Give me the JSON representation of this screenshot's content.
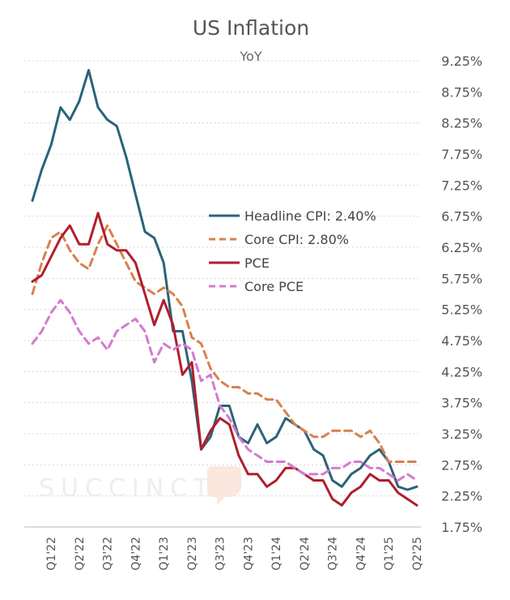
{
  "chart_data": {
    "type": "line",
    "title": "US Inflation",
    "subtitle": "YoY",
    "x": [
      "Jan-22",
      "Feb-22",
      "Mar-22",
      "Apr-22",
      "May-22",
      "Jun-22",
      "Jul-22",
      "Aug-22",
      "Sep-22",
      "Oct-22",
      "Nov-22",
      "Dec-22",
      "Jan-23",
      "Feb-23",
      "Mar-23",
      "Apr-23",
      "May-23",
      "Jun-23",
      "Jul-23",
      "Aug-23",
      "Sep-23",
      "Oct-23",
      "Nov-23",
      "Dec-23",
      "Jan-24",
      "Feb-24",
      "Mar-24",
      "Apr-24",
      "May-24",
      "Jun-24",
      "Jul-24",
      "Aug-24",
      "Sep-24",
      "Oct-24",
      "Nov-24",
      "Dec-24",
      "Jan-25",
      "Feb-25",
      "Mar-25",
      "Apr-25",
      "May-25",
      "Jun-25"
    ],
    "x_tick_labels": [
      {
        "index": 2,
        "label": "Q1'22"
      },
      {
        "index": 5,
        "label": "Q2'22"
      },
      {
        "index": 8,
        "label": "Q3'22"
      },
      {
        "index": 11,
        "label": "Q4'22"
      },
      {
        "index": 14,
        "label": "Q1'23"
      },
      {
        "index": 17,
        "label": "Q2'23"
      },
      {
        "index": 20,
        "label": "Q3'23"
      },
      {
        "index": 23,
        "label": "Q4'23"
      },
      {
        "index": 26,
        "label": "Q1'24"
      },
      {
        "index": 29,
        "label": "Q2'24"
      },
      {
        "index": 32,
        "label": "Q3'24"
      },
      {
        "index": 35,
        "label": "Q4'24"
      },
      {
        "index": 38,
        "label": "Q1'25"
      },
      {
        "index": 41,
        "label": "Q2'25"
      }
    ],
    "y_ticks": [
      1.75,
      2.25,
      2.75,
      3.25,
      3.75,
      4.25,
      4.75,
      5.25,
      5.75,
      6.25,
      6.75,
      7.25,
      7.75,
      8.25,
      8.75,
      9.25
    ],
    "y_tick_labels": [
      "1.75%",
      "2.25%",
      "2.75%",
      "3.25%",
      "3.75%",
      "4.25%",
      "4.75%",
      "5.25%",
      "5.75%",
      "6.25%",
      "6.75%",
      "7.25%",
      "7.75%",
      "8.25%",
      "8.75%",
      "9.25%"
    ],
    "ylim": [
      1.75,
      9.5
    ],
    "y_axis_position": "right",
    "grid": "horizontal dotted",
    "legend_position": "center-right",
    "series": [
      {
        "name": "Headline CPI: 2.40%",
        "color": "#2a6478",
        "style": "solid",
        "values": [
          7.0,
          7.5,
          7.9,
          8.5,
          8.3,
          8.6,
          9.1,
          8.5,
          8.3,
          8.2,
          7.7,
          7.1,
          6.5,
          6.4,
          6.0,
          4.9,
          4.9,
          4.1,
          3.0,
          3.2,
          3.7,
          3.7,
          3.2,
          3.1,
          3.4,
          3.1,
          3.2,
          3.5,
          3.4,
          3.3,
          3.0,
          2.9,
          2.5,
          2.4,
          2.6,
          2.7,
          2.9,
          3.0,
          2.8,
          2.4,
          2.35,
          2.4
        ]
      },
      {
        "name": "Core CPI: 2.80%",
        "color": "#d9804e",
        "style": "dashed",
        "values": [
          5.5,
          6.0,
          6.4,
          6.5,
          6.2,
          6.0,
          5.9,
          6.3,
          6.6,
          6.3,
          6.0,
          5.7,
          5.6,
          5.5,
          5.6,
          5.5,
          5.3,
          4.8,
          4.7,
          4.3,
          4.1,
          4.0,
          4.0,
          3.9,
          3.9,
          3.8,
          3.8,
          3.6,
          3.4,
          3.3,
          3.2,
          3.2,
          3.3,
          3.3,
          3.3,
          3.2,
          3.3,
          3.1,
          2.8,
          2.8,
          2.8,
          2.8
        ]
      },
      {
        "name": "PCE",
        "color": "#b01e2d",
        "style": "solid",
        "values": [
          5.7,
          5.8,
          6.1,
          6.4,
          6.6,
          6.3,
          6.3,
          6.8,
          6.3,
          6.2,
          6.2,
          6.0,
          5.5,
          5.0,
          5.4,
          5.0,
          4.2,
          4.4,
          3.0,
          3.3,
          3.5,
          3.4,
          2.9,
          2.6,
          2.6,
          2.4,
          2.5,
          2.7,
          2.7,
          2.6,
          2.5,
          2.5,
          2.2,
          2.1,
          2.3,
          2.4,
          2.6,
          2.5,
          2.5,
          2.3,
          2.2,
          2.1
        ]
      },
      {
        "name": "Core PCE",
        "color": "#d47ad0",
        "style": "dashed",
        "values": [
          4.7,
          4.9,
          5.2,
          5.4,
          5.2,
          4.9,
          4.7,
          4.8,
          4.6,
          4.9,
          5.0,
          5.1,
          4.9,
          4.4,
          4.7,
          4.6,
          4.7,
          4.6,
          4.1,
          4.2,
          3.7,
          3.5,
          3.2,
          3.0,
          2.9,
          2.8,
          2.8,
          2.8,
          2.7,
          2.6,
          2.6,
          2.6,
          2.7,
          2.7,
          2.8,
          2.8,
          2.7,
          2.7,
          2.6,
          2.5,
          2.6,
          2.5
        ]
      }
    ],
    "watermark": "SUCCINCT"
  }
}
